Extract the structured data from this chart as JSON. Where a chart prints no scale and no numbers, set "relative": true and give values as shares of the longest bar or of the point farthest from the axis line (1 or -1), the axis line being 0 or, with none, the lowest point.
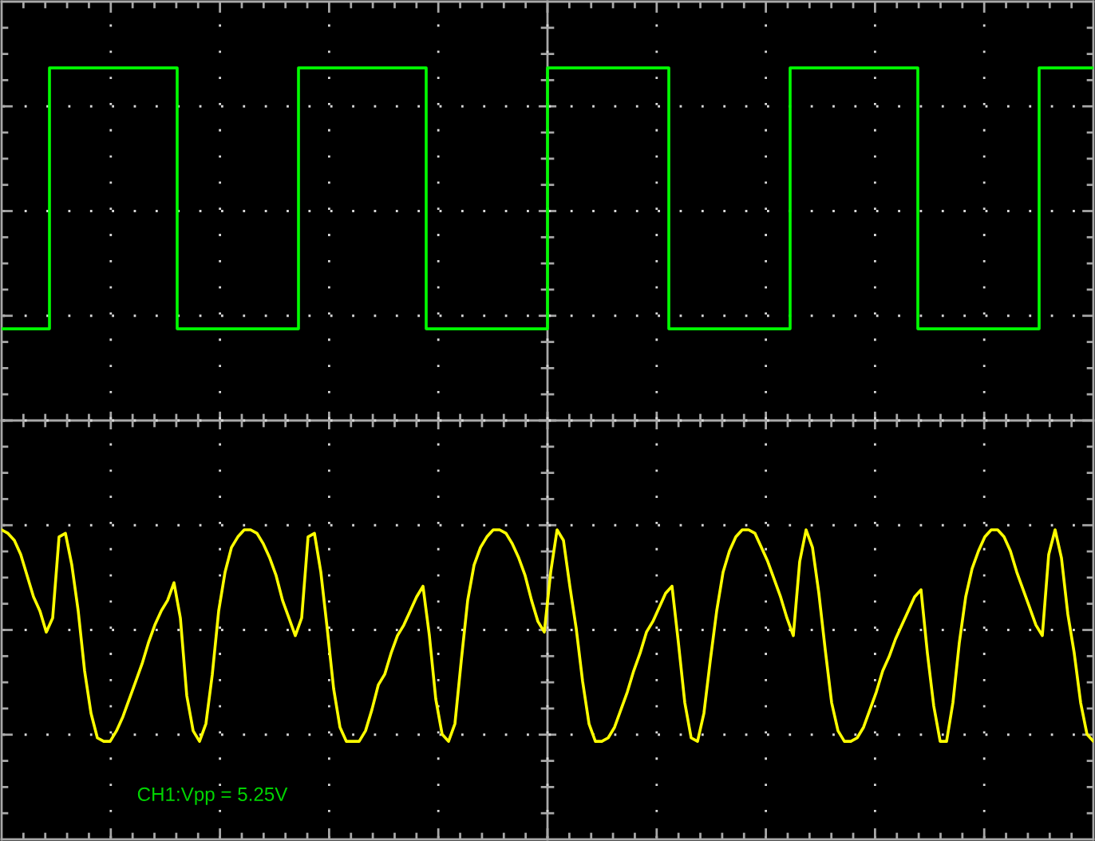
{
  "chart_data": {
    "type": "line",
    "relative": true,
    "grid": true,
    "annotations": [
      "CH1:Vpp = 5.25V"
    ],
    "categories": [
      null,
      null,
      null,
      null,
      null,
      null,
      null,
      null,
      null,
      null,
      null,
      null,
      null,
      null,
      null,
      null,
      null,
      null,
      null,
      null,
      null,
      null,
      null,
      null,
      null,
      null,
      null,
      null,
      null,
      null,
      null,
      null,
      null,
      null,
      null,
      null,
      null,
      null,
      null,
      null,
      null,
      null,
      null,
      null,
      null,
      null,
      null,
      null,
      null,
      null,
      null,
      null,
      null,
      null,
      null,
      null,
      null,
      null,
      null,
      null,
      null,
      null,
      null,
      null,
      null,
      null,
      null,
      null,
      null,
      null,
      null,
      null,
      null,
      null,
      null,
      null,
      null,
      null,
      null,
      null,
      null,
      null,
      null,
      null,
      null,
      null,
      null,
      null,
      null,
      null,
      null,
      null,
      null,
      null,
      null,
      null,
      null,
      null,
      null,
      null,
      null,
      null,
      null,
      null,
      null,
      null,
      null,
      null,
      null,
      null,
      null,
      null,
      null,
      null,
      null,
      null,
      null,
      null,
      null,
      null,
      null,
      null,
      null,
      null,
      null,
      null,
      null,
      null,
      null,
      null,
      null,
      null,
      null,
      null,
      null,
      null,
      null,
      null,
      null,
      null,
      null,
      null,
      null,
      null,
      null,
      null,
      null,
      null,
      null,
      null,
      null,
      null,
      null,
      null,
      null,
      null,
      null,
      null,
      null,
      null,
      null,
      null,
      null,
      null,
      null,
      null,
      null,
      null,
      null,
      null,
      null,
      null
    ],
    "series": [
      {
        "type": "step",
        "color": "#00ff00",
        "values": [
          0.26,
          0.26,
          0.26,
          0.26,
          0.26,
          0.26,
          0.26,
          0.26,
          1,
          1,
          1,
          1,
          1,
          1,
          1,
          1,
          1,
          1,
          1,
          1,
          1,
          1,
          1,
          1,
          1,
          1,
          1,
          1,
          0.26,
          0.26,
          0.26,
          0.26,
          0.26,
          0.26,
          0.26,
          0.26,
          0.26,
          0.26,
          0.26,
          0.26,
          0.26,
          0.26,
          0.26,
          0.26,
          0.26,
          0.26,
          0.26,
          1,
          1,
          1,
          1,
          1,
          1,
          1,
          1,
          1,
          1,
          1,
          1,
          1,
          1,
          1,
          1,
          1,
          1,
          1,
          1,
          0.26,
          0.26,
          0.26,
          0.26,
          0.26,
          0.26,
          0.26,
          0.26,
          0.26,
          0.26,
          0.26,
          0.26,
          0.26,
          0.26,
          0.26,
          0.26,
          0.26,
          0.26,
          0.26,
          1,
          1,
          1,
          1,
          1,
          1,
          1,
          1,
          1,
          1,
          1,
          1,
          1,
          1,
          1,
          1,
          1,
          1,
          1,
          0.26,
          0.26,
          0.26,
          0.26,
          0.26,
          0.26,
          0.26,
          0.26,
          0.26,
          0.26,
          0.26,
          0.26,
          0.26,
          0.26,
          0.26,
          0.26,
          0.26,
          0.26,
          0.26,
          1,
          1,
          1,
          1,
          1,
          1,
          1,
          1,
          1,
          1,
          1,
          1,
          1,
          1,
          1,
          1,
          1,
          1,
          1,
          1,
          0.26,
          0.26,
          0.26,
          0.26,
          0.26,
          0.26,
          0.26,
          0.26,
          0.26,
          0.26,
          0.26,
          0.26,
          0.26,
          0.26,
          0.26,
          0.26,
          0.26,
          0.26,
          0.26,
          1,
          1,
          1,
          1,
          1,
          1,
          1,
          1,
          1
        ]
      },
      {
        "color": "#ffff00",
        "values": [
          -0.31,
          -0.32,
          -0.34,
          -0.38,
          -0.44,
          -0.5,
          -0.54,
          -0.6,
          -0.56,
          -0.33,
          -0.32,
          -0.41,
          -0.54,
          -0.71,
          -0.83,
          -0.9,
          -0.91,
          -0.91,
          -0.88,
          -0.84,
          -0.79,
          -0.74,
          -0.69,
          -0.63,
          -0.58,
          -0.54,
          -0.51,
          -0.46,
          -0.56,
          -0.78,
          -0.88,
          -0.91,
          -0.86,
          -0.72,
          -0.54,
          -0.43,
          -0.36,
          -0.33,
          -0.31,
          -0.31,
          -0.32,
          -0.35,
          -0.39,
          -0.44,
          -0.51,
          -0.56,
          -0.61,
          -0.56,
          -0.33,
          -0.32,
          -0.43,
          -0.59,
          -0.76,
          -0.87,
          -0.91,
          -0.91,
          -0.91,
          -0.88,
          -0.82,
          -0.75,
          -0.72,
          -0.66,
          -0.61,
          -0.58,
          -0.54,
          -0.5,
          -0.47,
          -0.61,
          -0.79,
          -0.89,
          -0.91,
          -0.86,
          -0.68,
          -0.51,
          -0.41,
          -0.36,
          -0.33,
          -0.31,
          -0.31,
          -0.32,
          -0.35,
          -0.39,
          -0.44,
          -0.51,
          -0.57,
          -0.6,
          -0.43,
          -0.31,
          -0.34,
          -0.47,
          -0.59,
          -0.74,
          -0.86,
          -0.91,
          -0.91,
          -0.9,
          -0.87,
          -0.82,
          -0.77,
          -0.71,
          -0.66,
          -0.6,
          -0.57,
          -0.53,
          -0.49,
          -0.47,
          -0.63,
          -0.8,
          -0.9,
          -0.91,
          -0.83,
          -0.68,
          -0.54,
          -0.43,
          -0.37,
          -0.33,
          -0.31,
          -0.31,
          -0.32,
          -0.36,
          -0.4,
          -0.45,
          -0.5,
          -0.56,
          -0.61,
          -0.4,
          -0.31,
          -0.36,
          -0.49,
          -0.65,
          -0.8,
          -0.88,
          -0.91,
          -0.91,
          -0.9,
          -0.87,
          -0.82,
          -0.77,
          -0.71,
          -0.67,
          -0.62,
          -0.58,
          -0.54,
          -0.5,
          -0.48,
          -0.66,
          -0.81,
          -0.91,
          -0.91,
          -0.8,
          -0.63,
          -0.5,
          -0.42,
          -0.37,
          -0.33,
          -0.31,
          -0.31,
          -0.33,
          -0.37,
          -0.43,
          -0.48,
          -0.53,
          -0.58,
          -0.61,
          -0.38,
          -0.31,
          -0.39,
          -0.55,
          -0.66,
          -0.8,
          -0.89,
          -0.91
        ]
      }
    ]
  }
}
